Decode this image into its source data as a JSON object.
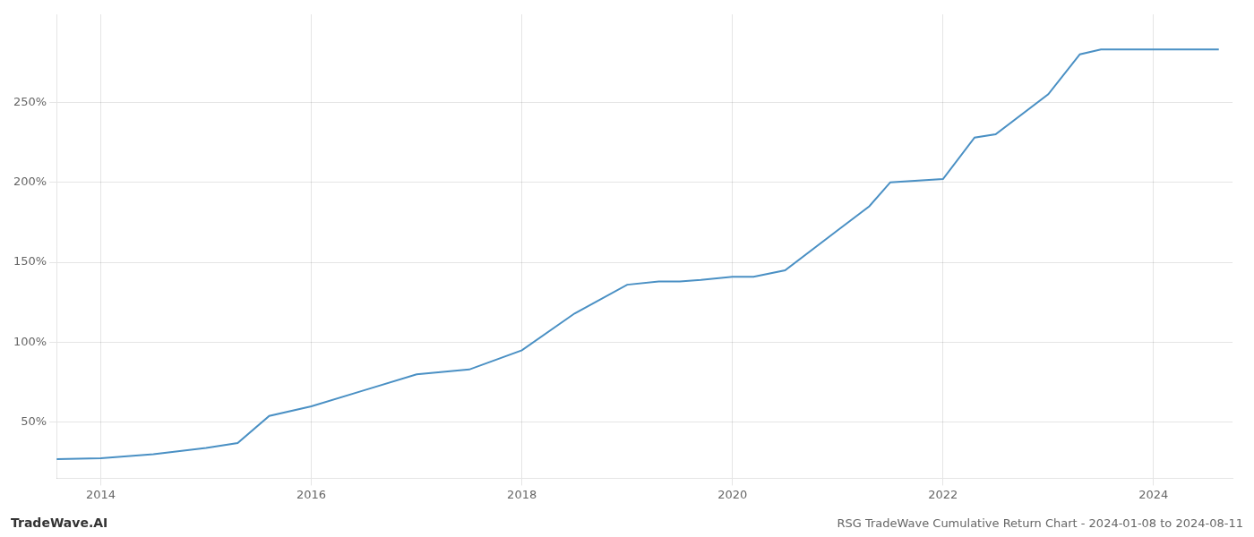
{
  "chart_data": {
    "type": "line",
    "title": "RSG TradeWave Cumulative Return Chart - 2024-01-08 to 2024-08-11",
    "annotations": [
      "TradeWave.AI"
    ],
    "x": [
      2013.58,
      2014.0,
      2014.5,
      2015.0,
      2015.3,
      2015.6,
      2016.0,
      2016.5,
      2017.0,
      2017.5,
      2018.0,
      2018.5,
      2019.0,
      2019.3,
      2019.5,
      2019.7,
      2020.0,
      2020.2,
      2020.5,
      2021.0,
      2021.3,
      2021.5,
      2022.0,
      2022.3,
      2022.5,
      2023.0,
      2023.3,
      2023.5,
      2023.7,
      2024.0,
      2024.3,
      2024.62
    ],
    "values": [
      27,
      27.5,
      30,
      34,
      37,
      54,
      60,
      70,
      80,
      83,
      95,
      118,
      136,
      138,
      138,
      139,
      141,
      141,
      145,
      170,
      185,
      200,
      202,
      228,
      230,
      255,
      280,
      283,
      283,
      283,
      283,
      283
    ],
    "color": "#4a90c4",
    "xlim": [
      2013.58,
      2024.75
    ],
    "xticks": [
      2014,
      2016,
      2018,
      2020,
      2022,
      2024
    ],
    "ylim": [
      15,
      305
    ],
    "yticks": [
      {
        "value": 50,
        "label": "50%"
      },
      {
        "value": 100,
        "label": "100%"
      },
      {
        "value": 150,
        "label": "150%"
      },
      {
        "value": 200,
        "label": "200%"
      },
      {
        "value": 250,
        "label": "250%"
      }
    ],
    "grid": true
  }
}
